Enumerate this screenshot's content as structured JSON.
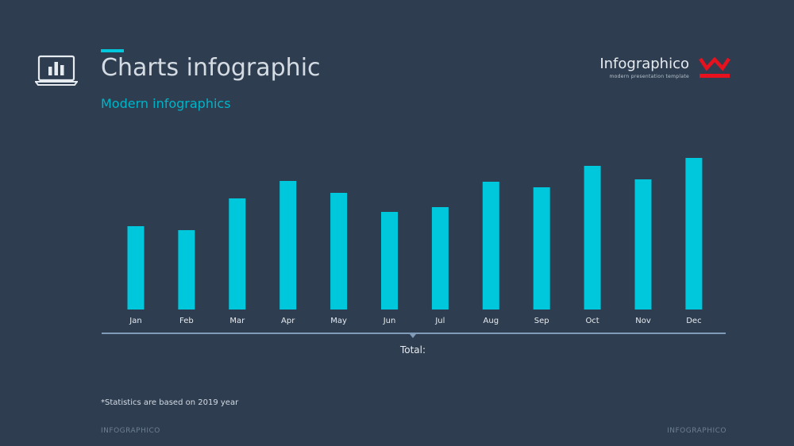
{
  "header": {
    "title": "Charts infographic",
    "subtitle": "Modern infographics"
  },
  "brand": {
    "name": "Infographico",
    "tagline": "modern presentation template",
    "logo_color": "#e8121f"
  },
  "colors": {
    "accent": "#00c8dc",
    "background": "#2e3d50",
    "axis": "#7f9bb8"
  },
  "icons": {
    "laptop": "laptop-chart-icon",
    "brand": "w-logo-icon"
  },
  "total": {
    "label": "Total:"
  },
  "footnote": "*Statistics  are based on 2019 year",
  "footer": {
    "left": "INFOGRAPHICO",
    "right": "INFOGRAPHICO"
  },
  "chart_data": {
    "type": "bar",
    "categories": [
      "Jan",
      "Feb",
      "Mar",
      "Apr",
      "May",
      "Jun",
      "Jul",
      "Aug",
      "Sep",
      "Oct",
      "Nov",
      "Dec"
    ],
    "values": [
      105,
      100,
      140,
      162,
      147,
      123,
      129,
      161,
      154,
      181,
      164,
      191
    ],
    "ylim": [
      0,
      200
    ],
    "grid": false,
    "legend": "none"
  }
}
